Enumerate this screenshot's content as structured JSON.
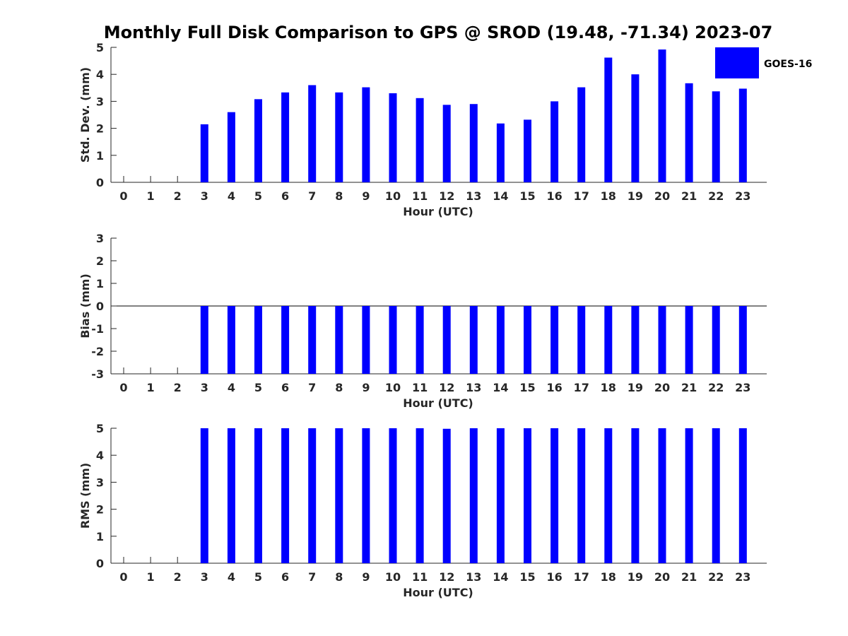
{
  "chart_data": {
    "type": "bar",
    "title": "Monthly Full Disk Comparison to GPS @ SROD (19.48, -71.34) 2023-07",
    "legend": {
      "label": "GOES-16",
      "placement": "top-right"
    },
    "colors": {
      "bar": "#0000ff",
      "axis": "#262626"
    },
    "categories": [
      "0",
      "1",
      "2",
      "3",
      "4",
      "5",
      "6",
      "7",
      "8",
      "9",
      "10",
      "11",
      "12",
      "13",
      "14",
      "15",
      "16",
      "17",
      "18",
      "19",
      "20",
      "21",
      "22",
      "23"
    ],
    "panels": [
      {
        "id": "std",
        "ylabel": "Std. Dev. (mm)",
        "xlabel": "Hour (UTC)",
        "ylim": [
          0,
          5
        ],
        "yticks": [
          "0",
          "1",
          "2",
          "3",
          "4",
          "5"
        ],
        "series": [
          {
            "name": "GOES-16",
            "values": [
              null,
              null,
              null,
              2.15,
              2.6,
              3.08,
              3.33,
              3.6,
              3.33,
              3.52,
              3.3,
              3.12,
              2.87,
              2.9,
              2.18,
              2.32,
              3.0,
              3.52,
              4.62,
              4.0,
              4.92,
              3.67,
              3.37,
              3.47
            ]
          }
        ]
      },
      {
        "id": "bias",
        "ylabel": "Bias (mm)",
        "xlabel": "Hour (UTC)",
        "ylim": [
          -3,
          3
        ],
        "yticks": [
          "-3",
          "-2",
          "-1",
          "0",
          "1",
          "2",
          "3"
        ],
        "series": [
          {
            "name": "GOES-16",
            "values": [
              null,
              null,
              null,
              -3,
              -3,
              -3,
              -3,
              -3,
              -3,
              -3,
              -3,
              -3,
              -3,
              -3,
              -3,
              -3,
              -3,
              -3,
              -3,
              -3,
              -3,
              -3,
              -3,
              -3
            ]
          }
        ]
      },
      {
        "id": "rms",
        "ylabel": "RMS (mm)",
        "xlabel": "Hour (UTC)",
        "ylim": [
          0,
          5
        ],
        "yticks": [
          "0",
          "1",
          "2",
          "3",
          "4",
          "5"
        ],
        "series": [
          {
            "name": "GOES-16",
            "values": [
              null,
              null,
              null,
              5,
              5,
              5,
              5,
              5,
              5,
              5,
              5,
              5,
              4.98,
              5,
              5,
              5,
              5,
              5,
              5,
              5,
              5,
              5,
              5,
              5
            ]
          }
        ]
      }
    ]
  }
}
